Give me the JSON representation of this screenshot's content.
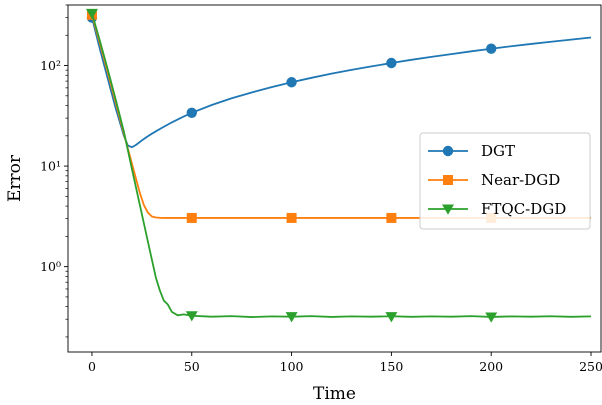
{
  "chart_data": {
    "type": "line",
    "xlabel": "Time",
    "ylabel": "Error",
    "xlim": [
      -12,
      255
    ],
    "ylim": [
      0.1416,
      400
    ],
    "yscale": "log",
    "grid": false,
    "legend_position": "center-right",
    "xticks": [
      {
        "value": 0,
        "label": "0"
      },
      {
        "value": 50,
        "label": "50"
      },
      {
        "value": 100,
        "label": "100"
      },
      {
        "value": 150,
        "label": "150"
      },
      {
        "value": 200,
        "label": "200"
      },
      {
        "value": 250,
        "label": "250"
      }
    ],
    "yticks": [
      {
        "value": 1,
        "label": "10⁰"
      },
      {
        "value": 10,
        "label": "10¹"
      },
      {
        "value": 100,
        "label": "10²"
      }
    ],
    "series": [
      {
        "name": "DGT",
        "color": "#1f77b4",
        "marker": "circle",
        "x": [
          0,
          4,
          8,
          12,
          16,
          18,
          20,
          22,
          25,
          28,
          30,
          35,
          40,
          45,
          50,
          60,
          70,
          80,
          90,
          100,
          110,
          120,
          130,
          140,
          150,
          160,
          170,
          180,
          190,
          200,
          210,
          220,
          230,
          240,
          250
        ],
        "y": [
          300,
          145,
          73,
          37,
          20,
          16.0,
          15.4,
          16.2,
          18.0,
          19.8,
          21.0,
          24.0,
          27.2,
          30.5,
          33.9,
          40.5,
          47.3,
          54.0,
          61.0,
          68.2,
          75.5,
          83.0,
          90.5,
          98.0,
          106.0,
          114.0,
          122.0,
          130.0,
          138.5,
          147.0,
          155.5,
          164.0,
          172.5,
          181.0,
          190.0
        ],
        "marker_x": [
          0,
          50,
          100,
          150,
          200
        ],
        "marker_y": [
          300,
          33.9,
          68.2,
          106.0,
          147.0
        ]
      },
      {
        "name": "Near-DGD",
        "color": "#ff7f0e",
        "marker": "square",
        "x": [
          0,
          4,
          8,
          12,
          16,
          20,
          24,
          26,
          28,
          30,
          32,
          34,
          36,
          40,
          50,
          100,
          150,
          200,
          250
        ],
        "y": [
          320,
          165,
          84,
          42,
          21,
          10.6,
          5.4,
          4.1,
          3.45,
          3.15,
          3.08,
          3.06,
          3.05,
          3.05,
          3.05,
          3.05,
          3.05,
          3.05,
          3.05
        ],
        "marker_x": [
          0,
          50,
          100,
          150,
          200
        ],
        "marker_y": [
          320,
          3.05,
          3.05,
          3.05,
          3.05
        ]
      },
      {
        "name": "FTQC-DGD",
        "color": "#2ca02c",
        "marker": "triangle-down",
        "x": [
          0,
          4,
          8,
          12,
          16,
          20,
          24,
          28,
          32,
          34,
          36,
          38,
          40,
          43,
          46,
          50,
          60,
          70,
          80,
          90,
          100,
          110,
          120,
          130,
          140,
          150,
          160,
          170,
          180,
          190,
          200,
          210,
          220,
          230,
          240,
          250
        ],
        "y": [
          330,
          175,
          90,
          45,
          22,
          9.4,
          4.1,
          1.78,
          0.78,
          0.58,
          0.46,
          0.42,
          0.355,
          0.328,
          0.335,
          0.325,
          0.318,
          0.322,
          0.315,
          0.32,
          0.318,
          0.322,
          0.316,
          0.32,
          0.318,
          0.321,
          0.317,
          0.32,
          0.318,
          0.322,
          0.316,
          0.32,
          0.318,
          0.321,
          0.317,
          0.32
        ],
        "marker_x": [
          0,
          50,
          100,
          150,
          200
        ],
        "marker_y": [
          330,
          0.325,
          0.318,
          0.318,
          0.316
        ]
      }
    ]
  }
}
